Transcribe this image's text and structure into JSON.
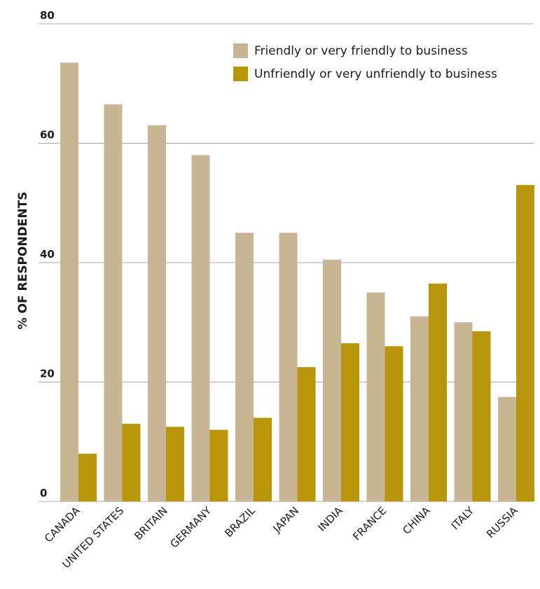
{
  "chart_data": {
    "type": "bar",
    "title": "",
    "xlabel": "",
    "ylabel": "% OF RESPONDENTS",
    "ylim": [
      0,
      80
    ],
    "yticks": [
      "0",
      "20",
      "40",
      "60",
      "80"
    ],
    "grid": true,
    "legend_position": "top-right",
    "categories": [
      "CANADA",
      "UNITED STATES",
      "BRITAIN",
      "GERMANY",
      "BRAZIL",
      "JAPAN",
      "INDIA",
      "FRANCE",
      "CHINA",
      "ITALY",
      "RUSSIA"
    ],
    "series": [
      {
        "name": "Friendly or very friendly to business",
        "color": "#c8b593",
        "values": [
          73.5,
          66.5,
          63,
          58,
          45,
          45,
          40.5,
          35,
          31,
          30,
          17.5
        ]
      },
      {
        "name": "Unfriendly or very unfriendly to business",
        "color": "#b8950a",
        "values": [
          8,
          13,
          12.5,
          12,
          14,
          22.5,
          26.5,
          26,
          36.5,
          28.5,
          53
        ]
      }
    ]
  }
}
